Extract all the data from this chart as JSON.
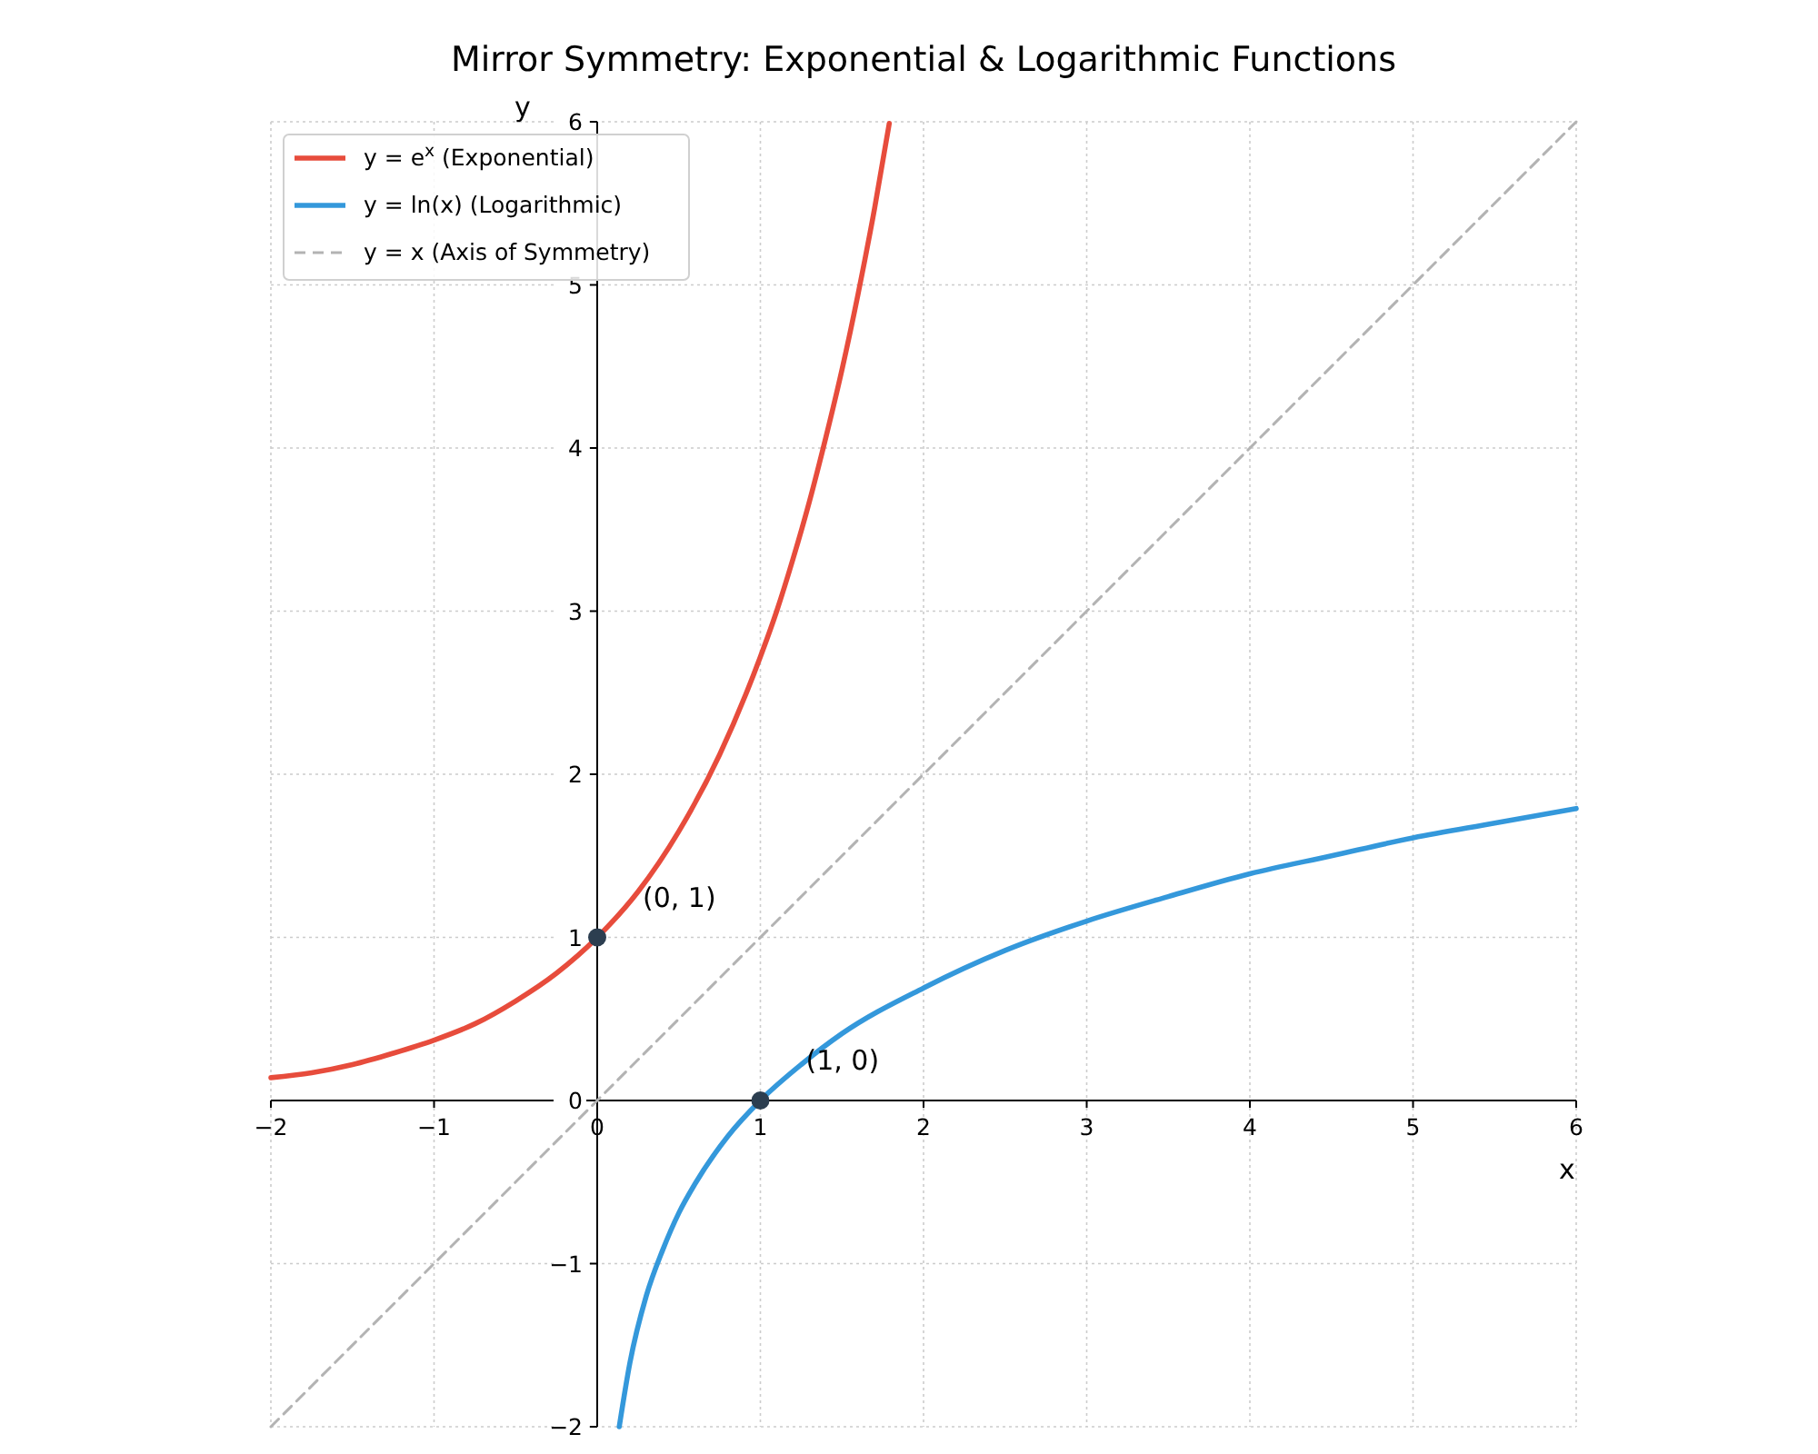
{
  "chart_data": {
    "type": "line",
    "title": "Mirror Symmetry: Exponential & Logarithmic Functions",
    "xlabel": "x",
    "ylabel": "y",
    "xlim": [
      -2,
      6
    ],
    "ylim": [
      -2,
      6
    ],
    "xticks": [
      -2,
      -1,
      0,
      1,
      2,
      3,
      4,
      5,
      6
    ],
    "yticks": [
      -2,
      -1,
      0,
      1,
      2,
      3,
      4,
      5,
      6
    ],
    "grid": true,
    "legend": "top left",
    "marker": "none",
    "series": [
      {
        "name": "y = e$^{x}$ (Exponential)",
        "color": "#e74c3c",
        "line_style": "solid",
        "x": [
          -2,
          -1.75,
          -1.5,
          -1.25,
          -1,
          -0.75,
          -0.5,
          -0.25,
          0,
          0.25,
          0.5,
          0.75,
          1,
          1.1,
          1.2,
          1.3,
          1.4,
          1.5,
          1.6,
          1.7,
          1.79
        ],
        "values": [
          0.14,
          0.17,
          0.22,
          0.29,
          0.37,
          0.47,
          0.61,
          0.78,
          1,
          1.28,
          1.65,
          2.12,
          2.72,
          3.0,
          3.32,
          3.67,
          4.06,
          4.48,
          4.95,
          5.47,
          5.99
        ]
      },
      {
        "name": "y = ln(x) (Logarithmic)",
        "color": "#3498db",
        "line_style": "solid",
        "x": [
          0.135,
          0.2,
          0.3,
          0.4,
          0.5,
          0.6,
          0.8,
          1,
          1.25,
          1.5,
          2,
          2.5,
          3,
          3.5,
          4,
          4.5,
          5,
          5.5,
          6
        ],
        "values": [
          -2,
          -1.61,
          -1.2,
          -0.92,
          -0.69,
          -0.51,
          -0.22,
          0,
          0.22,
          0.41,
          0.69,
          0.92,
          1.1,
          1.25,
          1.39,
          1.5,
          1.61,
          1.7,
          1.79
        ]
      },
      {
        "name": "y = x (Axis of Symmetry)",
        "color": "#b3b3b3",
        "line_style": "dashed",
        "x": [
          -2,
          6
        ],
        "values": [
          -2,
          6
        ]
      },
      {
        "type": "scatter",
        "marker": "circle",
        "color": "#2c3e50",
        "x": [
          0,
          1
        ],
        "values": [
          1,
          0
        ]
      }
    ],
    "annotations": [
      {
        "text": "(0, 1)",
        "x": 0,
        "y": 1
      },
      {
        "text": "(1, 0)",
        "x": 1,
        "y": 0
      }
    ]
  }
}
